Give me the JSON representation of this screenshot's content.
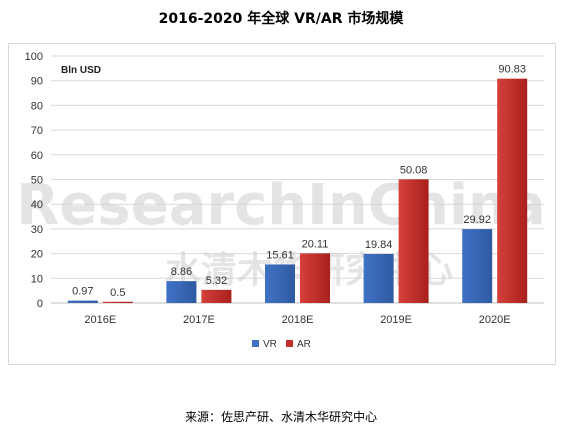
{
  "title": "2016-2020 年全球 VR/AR 市场规模",
  "source": "来源：佐思产研、水清木华研究中心",
  "watermark": {
    "line1": "ResearchInChina",
    "line2": "水清木华研究中心"
  },
  "colors": {
    "vr": "#3f72c4",
    "ar": "#c0302d",
    "grid": "#d9d9d9"
  },
  "chart_data": {
    "type": "bar",
    "unit_label": "Bln USD",
    "categories": [
      "2016E",
      "2017E",
      "2018E",
      "2019E",
      "2020E"
    ],
    "series": [
      {
        "name": "VR",
        "values": [
          0.97,
          8.86,
          15.61,
          19.84,
          29.92
        ],
        "labels": [
          "0.97",
          "8.86",
          "15.61",
          "19.84",
          "29.92"
        ]
      },
      {
        "name": "AR",
        "values": [
          0.5,
          5.32,
          20.11,
          50.08,
          90.83
        ],
        "labels": [
          "0.5",
          "5.32",
          "20.11",
          "50.08",
          "90.83"
        ]
      }
    ],
    "ylim": [
      0,
      100
    ],
    "yticks": [
      0,
      10,
      20,
      30,
      40,
      50,
      60,
      70,
      80,
      90,
      100
    ],
    "grid": true,
    "legend": "bottom"
  }
}
